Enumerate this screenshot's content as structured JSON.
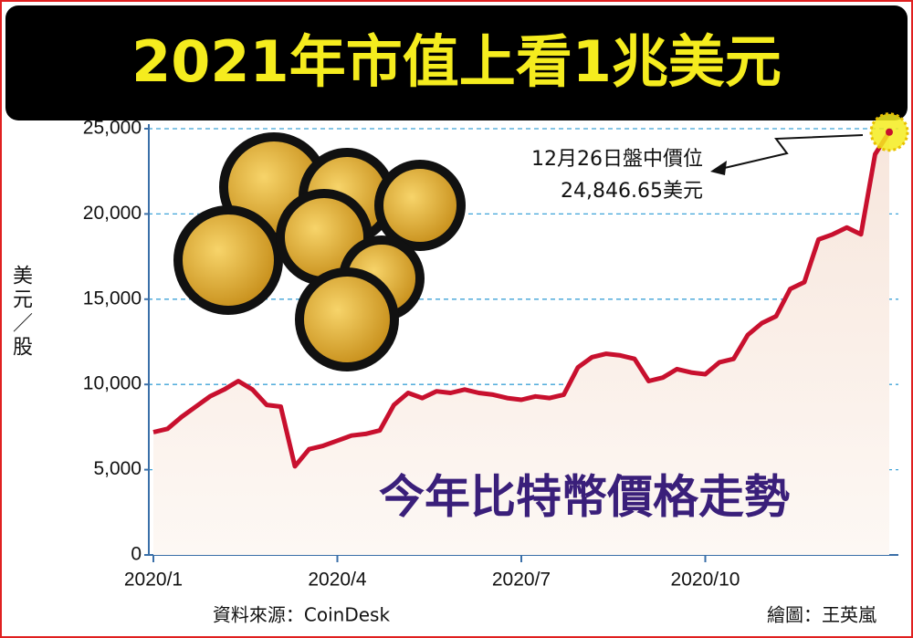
{
  "chart_data": {
    "type": "line",
    "title": "2021年市值上看1兆美元",
    "subtitle": "今年比特幣價格走勢",
    "y_label": "美元／股",
    "annotation": [
      "12月26日盤中價位",
      "24,846.65美元"
    ],
    "source": "資料來源：CoinDesk",
    "credit": "繪圖：王英嵐",
    "categories": [
      "2020/1",
      null,
      null,
      null,
      null,
      null,
      null,
      null,
      null,
      null,
      null,
      null,
      null,
      "2020/4",
      null,
      null,
      null,
      null,
      null,
      null,
      null,
      null,
      null,
      null,
      null,
      null,
      "2020/7",
      null,
      null,
      null,
      null,
      null,
      null,
      null,
      null,
      null,
      null,
      null,
      null,
      "2020/10",
      null,
      null,
      null,
      null,
      null,
      null,
      null,
      null,
      null,
      null,
      null,
      null,
      null
    ],
    "values": [
      7200,
      7400,
      8100,
      8700,
      9300,
      9700,
      10200,
      9700,
      8800,
      8700,
      5200,
      6200,
      6400,
      6700,
      7000,
      7100,
      7300,
      8800,
      9500,
      9200,
      9600,
      9500,
      9700,
      9500,
      9400,
      9200,
      9100,
      9300,
      9200,
      9400,
      11000,
      11600,
      11800,
      11700,
      11500,
      10200,
      10400,
      10900,
      10700,
      10600,
      11300,
      11500,
      12900,
      13600,
      14000,
      15600,
      16000,
      18500,
      18800,
      19200,
      18800,
      23500,
      24800
    ],
    "color": "#c8102e",
    "ylim": [
      0,
      25000
    ],
    "yticks": [
      0,
      {
        "value": 5000,
        "label": "5,000"
      },
      {
        "value": 10000,
        "label": "10,000"
      },
      {
        "value": 15000,
        "label": "15,000"
      },
      {
        "value": 20000,
        "label": "20,000"
      },
      {
        "value": 25000,
        "label": "25,000"
      }
    ],
    "grid": true
  }
}
